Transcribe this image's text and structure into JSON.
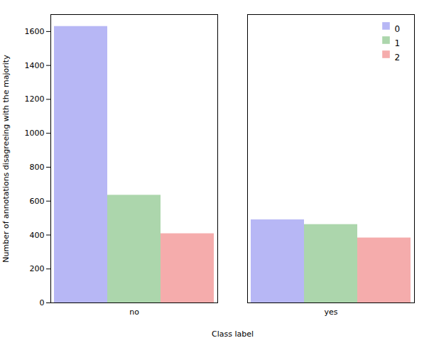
{
  "chart_data": {
    "type": "bar",
    "categories": [
      "no",
      "yes"
    ],
    "series": [
      {
        "name": "0",
        "color": "#9090f0",
        "values": [
          1630,
          490
        ]
      },
      {
        "name": "1",
        "color": "#80c080",
        "values": [
          635,
          462
        ]
      },
      {
        "name": "2",
        "color": "#f08080",
        "values": [
          408,
          383
        ]
      }
    ],
    "xlabel": "Class label",
    "ylabel": "Number of annotations disagreeing with the majority",
    "ylim": [
      0,
      1700
    ],
    "yticks": [
      0,
      200,
      400,
      600,
      800,
      1000,
      1200,
      1400,
      1600
    ],
    "grid": false,
    "legend": "upper right"
  }
}
